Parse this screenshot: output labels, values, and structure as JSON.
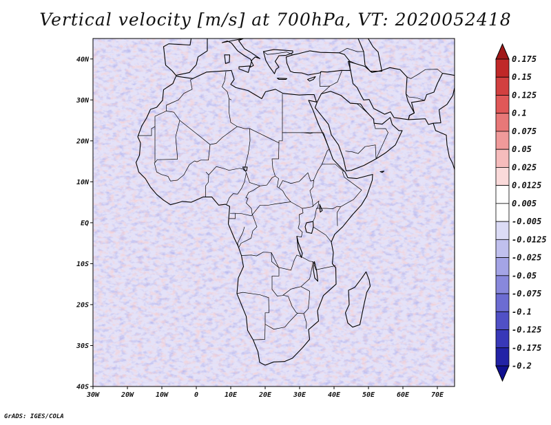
{
  "title": "Vertical velocity [m/s] at 700hPa, VT: 2020052418",
  "footer": "GrADS: IGES/COLA",
  "map": {
    "variable": "Vertical velocity",
    "units": "m/s",
    "level": "700hPa",
    "valid_time": "2020052418",
    "lon_range": [
      -30,
      75
    ],
    "lat_range": [
      -40,
      45
    ],
    "lon_ticks": [
      "30W",
      "20W",
      "10W",
      "0",
      "10E",
      "20E",
      "30E",
      "40E",
      "50E",
      "60E",
      "70E"
    ],
    "lon_tick_values": [
      -30,
      -20,
      -10,
      0,
      10,
      20,
      30,
      40,
      50,
      60,
      70
    ],
    "lat_ticks": [
      "40S",
      "30S",
      "20S",
      "10S",
      "EQ",
      "10N",
      "20N",
      "30N",
      "40N"
    ],
    "lat_tick_values": [
      -40,
      -30,
      -20,
      -10,
      0,
      10,
      20,
      30,
      40
    ]
  },
  "colorbar": {
    "levels": [
      "0.175",
      "0.15",
      "0.125",
      "0.1",
      "0.075",
      "0.05",
      "0.025",
      "0.0125",
      "0.005",
      "-0.005",
      "-0.0125",
      "-0.025",
      "-0.05",
      "-0.075",
      "-0.1",
      "-0.125",
      "-0.175",
      "-0.2"
    ],
    "colors": [
      "#a01818",
      "#c02828",
      "#d24040",
      "#e05858",
      "#e87878",
      "#f09a9a",
      "#f6bcbc",
      "#fadada",
      "#ffffff",
      "#ffffff",
      "#dcdcf6",
      "#c0c0ee",
      "#a4a4e6",
      "#8888dc",
      "#6c6cd2",
      "#5050c6",
      "#3838b8",
      "#2222a6",
      "#101090"
    ]
  }
}
